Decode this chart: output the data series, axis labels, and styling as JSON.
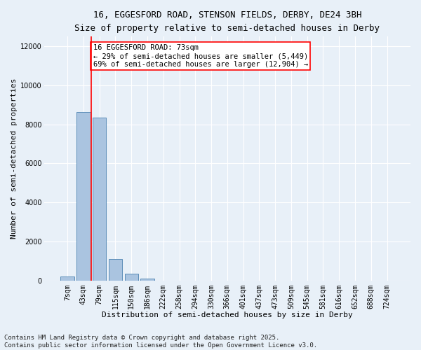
{
  "title_line1": "16, EGGESFORD ROAD, STENSON FIELDS, DERBY, DE24 3BH",
  "title_line2": "Size of property relative to semi-detached houses in Derby",
  "xlabel": "Distribution of semi-detached houses by size in Derby",
  "ylabel": "Number of semi-detached properties",
  "categories": [
    "7sqm",
    "43sqm",
    "79sqm",
    "115sqm",
    "150sqm",
    "186sqm",
    "222sqm",
    "258sqm",
    "294sqm",
    "330sqm",
    "366sqm",
    "401sqm",
    "437sqm",
    "473sqm",
    "509sqm",
    "545sqm",
    "581sqm",
    "616sqm",
    "652sqm",
    "688sqm",
    "724sqm"
  ],
  "values": [
    200,
    8650,
    8350,
    1100,
    350,
    100,
    0,
    0,
    0,
    0,
    0,
    0,
    0,
    0,
    0,
    0,
    0,
    0,
    0,
    0,
    0
  ],
  "bar_color": "#aac4e0",
  "bar_edge_color": "#5b8db8",
  "vline_color": "red",
  "annotation_text": "16 EGGESFORD ROAD: 73sqm\n← 29% of semi-detached houses are smaller (5,449)\n69% of semi-detached houses are larger (12,904) →",
  "annotation_box_color": "white",
  "annotation_box_edge": "red",
  "ylim": [
    0,
    12500
  ],
  "yticks": [
    0,
    2000,
    4000,
    6000,
    8000,
    10000,
    12000
  ],
  "background_color": "#e8f0f8",
  "grid_color": "white",
  "footer_line1": "Contains HM Land Registry data © Crown copyright and database right 2025.",
  "footer_line2": "Contains public sector information licensed under the Open Government Licence v3.0.",
  "title_fontsize": 9,
  "subtitle_fontsize": 8.5,
  "axis_label_fontsize": 8,
  "tick_fontsize": 7,
  "annotation_fontsize": 7.5,
  "footer_fontsize": 6.5
}
